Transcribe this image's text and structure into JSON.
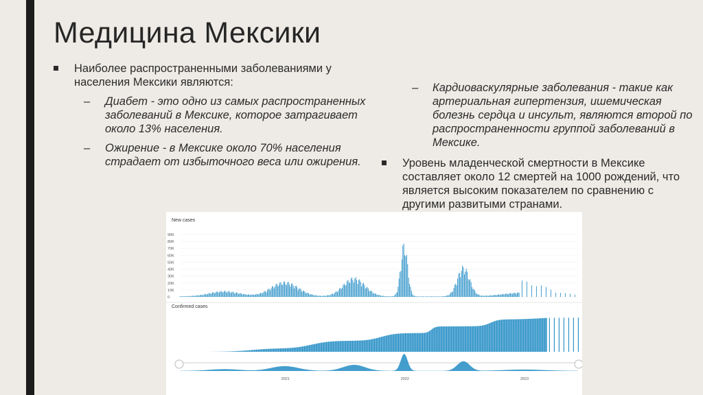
{
  "slide": {
    "title": "Медицина Мексики",
    "bullet1": "Наиболее распространенными заболеваниями у населения Мексики являются:",
    "sub1": "Диабет - это одно из самых распространенных заболеваний в Мексике, которое затрагивает около 13% населения.",
    "sub2": "Ожирение - в Мексике около 70% населения страдает от избыточного веса или ожирения.",
    "sub3": "Кардиоваскулярные заболевания - такие как артериальная гипертензия, ишемическая болезнь сердца и инсульт, являются второй по распространенности группой заболеваний в Мексике.",
    "bullet2": "Уровень младенческой смертности в Мексике составляет около 12 смертей на 1000 рождений, что является высоким показателем по сравнению с другими развитыми странами."
  },
  "chart": {
    "top_label": "New cases",
    "bottom_label": "Confirmed cases",
    "y_ticks": [
      "90K",
      "80K",
      "70K",
      "60K",
      "50K",
      "40K",
      "30K",
      "20K",
      "10K",
      "0"
    ],
    "x_ticks": [
      "2021",
      "2022",
      "2023"
    ],
    "color": "#2f93c8"
  },
  "chart_data": {
    "type": "bar",
    "title": "New cases",
    "ylim": [
      0,
      90000
    ],
    "x_ticks": [
      "2021",
      "2022",
      "2023"
    ],
    "waves": [
      {
        "peak_date": "2020-07",
        "value": 8000
      },
      {
        "peak_date": "2021-01",
        "value": 22000
      },
      {
        "peak_date": "2021-08",
        "value": 28000
      },
      {
        "peak_date": "2022-01",
        "value": 80000
      },
      {
        "peak_date": "2022-07",
        "value": 45000
      },
      {
        "peak_date": "2023-01",
        "value": 6000
      }
    ]
  }
}
